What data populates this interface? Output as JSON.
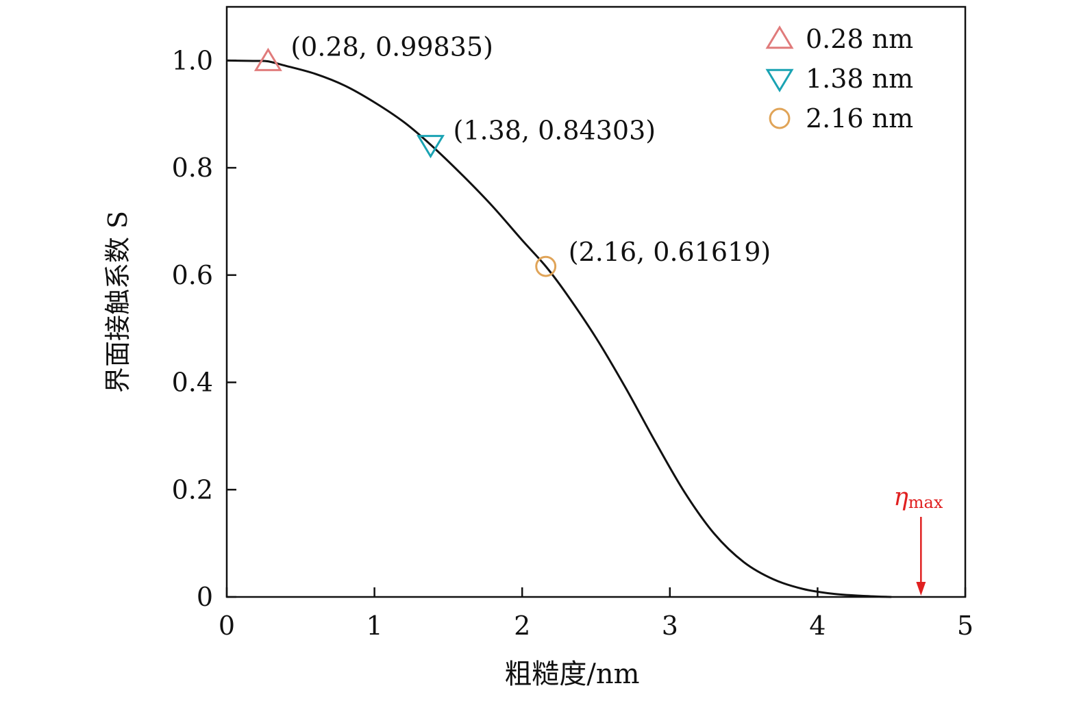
{
  "chart_data": {
    "type": "line",
    "xlabel": "粗糙度/nm",
    "ylabel": "界面接触系数 S",
    "xlim": [
      0,
      5
    ],
    "ylim": [
      0,
      1.1
    ],
    "x_ticks": [
      "0",
      "1",
      "2",
      "3",
      "4",
      "5"
    ],
    "x_tick_values": [
      0,
      1,
      2,
      3,
      4,
      5
    ],
    "y_ticks": [
      "0",
      "0.2",
      "0.4",
      "0.6",
      "0.8",
      "1.0"
    ],
    "y_tick_values": [
      0,
      0.2,
      0.4,
      0.6,
      0.8,
      1.0
    ],
    "curve": {
      "color": "#111111",
      "x": [
        0,
        0.1,
        0.2,
        0.28,
        0.4,
        0.6,
        0.8,
        1.0,
        1.2,
        1.38,
        1.6,
        1.8,
        2.0,
        2.16,
        2.3,
        2.5,
        2.7,
        2.9,
        3.1,
        3.3,
        3.5,
        3.7,
        3.9,
        4.1,
        4.3,
        4.5
      ],
      "y": [
        1.0,
        0.9995,
        0.9992,
        0.99835,
        0.99,
        0.975,
        0.953,
        0.922,
        0.885,
        0.84303,
        0.785,
        0.728,
        0.665,
        0.61619,
        0.565,
        0.483,
        0.39,
        0.29,
        0.195,
        0.118,
        0.065,
        0.033,
        0.015,
        0.006,
        0.002,
        0.0
      ]
    },
    "markers": [
      {
        "name": "0.28 nm",
        "x": 0.28,
        "y": 0.99835,
        "symbol": "triangle-up",
        "color": "#e07b7b",
        "label": "(0.28, 0.99835)"
      },
      {
        "name": "1.38 nm",
        "x": 1.38,
        "y": 0.84303,
        "symbol": "triangle-down",
        "color": "#1aa3b3",
        "label": "(1.38, 0.84303)"
      },
      {
        "name": "2.16 nm",
        "x": 2.16,
        "y": 0.61619,
        "symbol": "circle",
        "color": "#e0a458",
        "label": "(2.16, 0.61619)"
      }
    ],
    "legend_position": "top-right",
    "annotation": {
      "text_main": "η",
      "text_sub": "max",
      "x": 4.7,
      "color": "#e02020"
    }
  }
}
